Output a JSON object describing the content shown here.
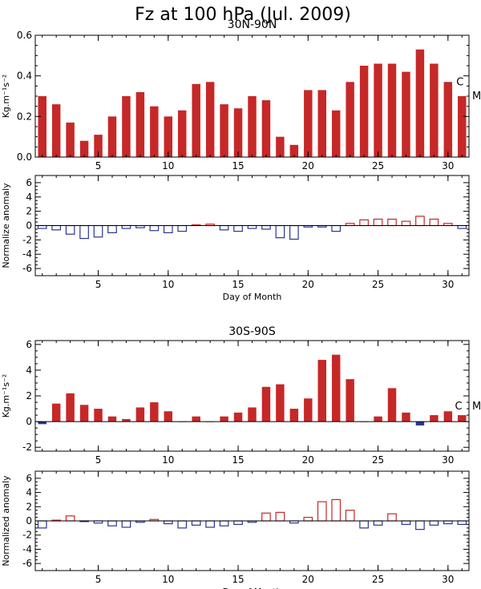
{
  "title": "Fz at 100 hPa (Jul. 2009)",
  "colors": {
    "positive": "#c62828",
    "negative": "#2a3590",
    "axis": "#000000"
  },
  "chart_data": [
    {
      "id": "nh-flux",
      "type": "bar",
      "title": "30N-90N",
      "ylabel": "Kg.m⁻¹s⁻²",
      "xlabel": "",
      "x": [
        1,
        2,
        3,
        4,
        5,
        6,
        7,
        8,
        9,
        10,
        11,
        12,
        13,
        14,
        15,
        16,
        17,
        18,
        19,
        20,
        21,
        22,
        23,
        24,
        25,
        26,
        27,
        28,
        29,
        30,
        31
      ],
      "values": [
        0.3,
        0.26,
        0.17,
        0.08,
        0.11,
        0.2,
        0.3,
        0.32,
        0.25,
        0.2,
        0.23,
        0.36,
        0.37,
        0.26,
        0.24,
        0.3,
        0.28,
        0.1,
        0.06,
        0.33,
        0.33,
        0.23,
        0.37,
        0.45,
        0.46,
        0.46,
        0.42,
        0.53,
        0.46,
        0.37,
        0.3
      ],
      "bar_style": "filled",
      "xlim": [
        0.5,
        31.5
      ],
      "ylim": [
        0,
        0.6
      ],
      "xticks": [
        5,
        10,
        15,
        20,
        25,
        30
      ],
      "yticks": [
        0.0,
        0.2,
        0.4,
        0.6
      ],
      "ytick_labels": [
        "0.0",
        "0.2",
        "0.4",
        "0.6"
      ],
      "markers": [
        {
          "text": "C",
          "x": 30.6,
          "y": 0.37,
          "side": "inside"
        },
        {
          "text": "M",
          "y": 0.3,
          "side": "outside"
        }
      ]
    },
    {
      "id": "nh-anomaly",
      "type": "bar",
      "title": "",
      "ylabel": "Normalize anomaly",
      "xlabel": "Day of Month",
      "x": [
        1,
        2,
        3,
        4,
        5,
        6,
        7,
        8,
        9,
        10,
        11,
        12,
        13,
        14,
        15,
        16,
        17,
        18,
        19,
        20,
        21,
        22,
        23,
        24,
        25,
        26,
        27,
        28,
        29,
        30,
        31
      ],
      "values": [
        -0.4,
        -0.6,
        -1.2,
        -1.8,
        -1.6,
        -1.0,
        -0.4,
        -0.3,
        -0.7,
        -1.0,
        -0.8,
        0.1,
        0.2,
        -0.6,
        -0.8,
        -0.4,
        -0.5,
        -1.7,
        -1.9,
        -0.2,
        -0.2,
        -0.8,
        0.3,
        0.8,
        0.9,
        0.9,
        0.6,
        1.3,
        0.9,
        0.3,
        -0.4
      ],
      "bar_style": "outline",
      "xlim": [
        0.5,
        31.5
      ],
      "ylim": [
        -7,
        7
      ],
      "xticks": [
        5,
        10,
        15,
        20,
        25,
        30
      ],
      "yticks": [
        -6,
        -4,
        -2,
        0,
        2,
        4,
        6
      ],
      "ytick_labels": [
        "-6",
        "-4",
        "-2",
        "0",
        "2",
        "4",
        "6"
      ],
      "markers": []
    },
    {
      "id": "sh-flux",
      "type": "bar",
      "title": "30S-90S",
      "ylabel": "Kg.m⁻¹s⁻²",
      "xlabel": "",
      "x": [
        1,
        2,
        3,
        4,
        5,
        6,
        7,
        8,
        9,
        10,
        11,
        12,
        13,
        14,
        15,
        16,
        17,
        18,
        19,
        20,
        21,
        22,
        23,
        24,
        25,
        26,
        27,
        28,
        29,
        30,
        31
      ],
      "values": [
        -0.2,
        1.4,
        2.2,
        1.3,
        1.0,
        0.4,
        0.2,
        1.1,
        1.5,
        0.8,
        0.0,
        0.4,
        0.0,
        0.4,
        0.7,
        1.1,
        2.7,
        2.9,
        1.0,
        1.8,
        4.8,
        5.2,
        3.3,
        0.0,
        0.4,
        2.6,
        0.7,
        -0.3,
        0.5,
        0.8,
        0.5
      ],
      "bar_style": "filled",
      "xlim": [
        0.5,
        31.5
      ],
      "ylim": [
        -2.3,
        6.3
      ],
      "xticks": [
        5,
        10,
        15,
        20,
        25,
        30
      ],
      "yticks": [
        -2,
        0,
        2,
        4,
        6
      ],
      "ytick_labels": [
        "-2",
        "0",
        "2",
        "4",
        "6"
      ],
      "markers": [
        {
          "text": "C",
          "x": 30.5,
          "y": 1.2,
          "side": "inside"
        },
        {
          "text": "M",
          "y": 1.2,
          "side": "outside"
        }
      ]
    },
    {
      "id": "sh-anomaly",
      "type": "bar",
      "title": "",
      "ylabel": "Normalized anomaly",
      "xlabel": "Day of Month",
      "x": [
        1,
        2,
        3,
        4,
        5,
        6,
        7,
        8,
        9,
        10,
        11,
        12,
        13,
        14,
        15,
        16,
        17,
        18,
        19,
        20,
        21,
        22,
        23,
        24,
        25,
        26,
        27,
        28,
        29,
        30,
        31
      ],
      "values": [
        -1.0,
        0.1,
        0.7,
        -0.1,
        -0.3,
        -0.7,
        -0.9,
        -0.2,
        0.2,
        -0.4,
        -1.0,
        -0.6,
        -0.9,
        -0.7,
        -0.5,
        -0.2,
        1.1,
        1.2,
        -0.3,
        0.5,
        2.7,
        3.0,
        1.5,
        -1.0,
        -0.6,
        1.0,
        -0.5,
        -1.2,
        -0.6,
        -0.4,
        -0.5
      ],
      "bar_style": "outline",
      "xlim": [
        0.5,
        31.5
      ],
      "ylim": [
        -7,
        7
      ],
      "xticks": [
        5,
        10,
        15,
        20,
        25,
        30
      ],
      "yticks": [
        -6,
        -4,
        -2,
        0,
        2,
        4,
        6
      ],
      "ytick_labels": [
        "-6",
        "-4",
        "-2",
        "0",
        "2",
        "4",
        "6"
      ],
      "markers": []
    }
  ]
}
